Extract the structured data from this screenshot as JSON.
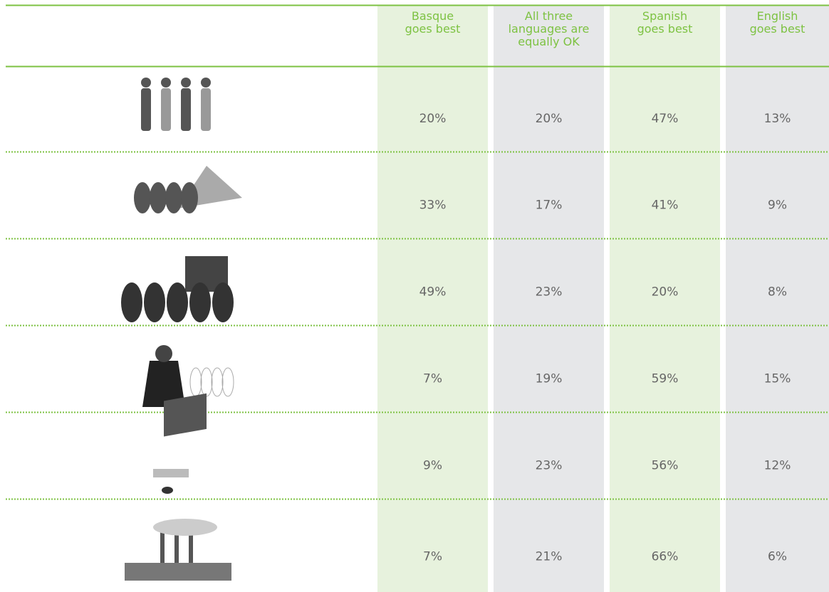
{
  "table": {
    "columns": [
      [
        "Basque",
        "goes best"
      ],
      [
        "All three",
        "languages are",
        "equally OK"
      ],
      [
        "Spanish",
        "goes best"
      ],
      [
        "English",
        "goes best"
      ]
    ],
    "rows": [
      [
        "20%",
        "20%",
        "47%",
        "13%"
      ],
      [
        "33%",
        "17%",
        "41%",
        "9%"
      ],
      [
        "49%",
        "23%",
        "20%",
        "8%"
      ],
      [
        "7%",
        "19%",
        "59%",
        "15%"
      ],
      [
        "9%",
        "23%",
        "56%",
        "12%"
      ],
      [
        "7%",
        "21%",
        "66%",
        "6%"
      ]
    ]
  }
}
